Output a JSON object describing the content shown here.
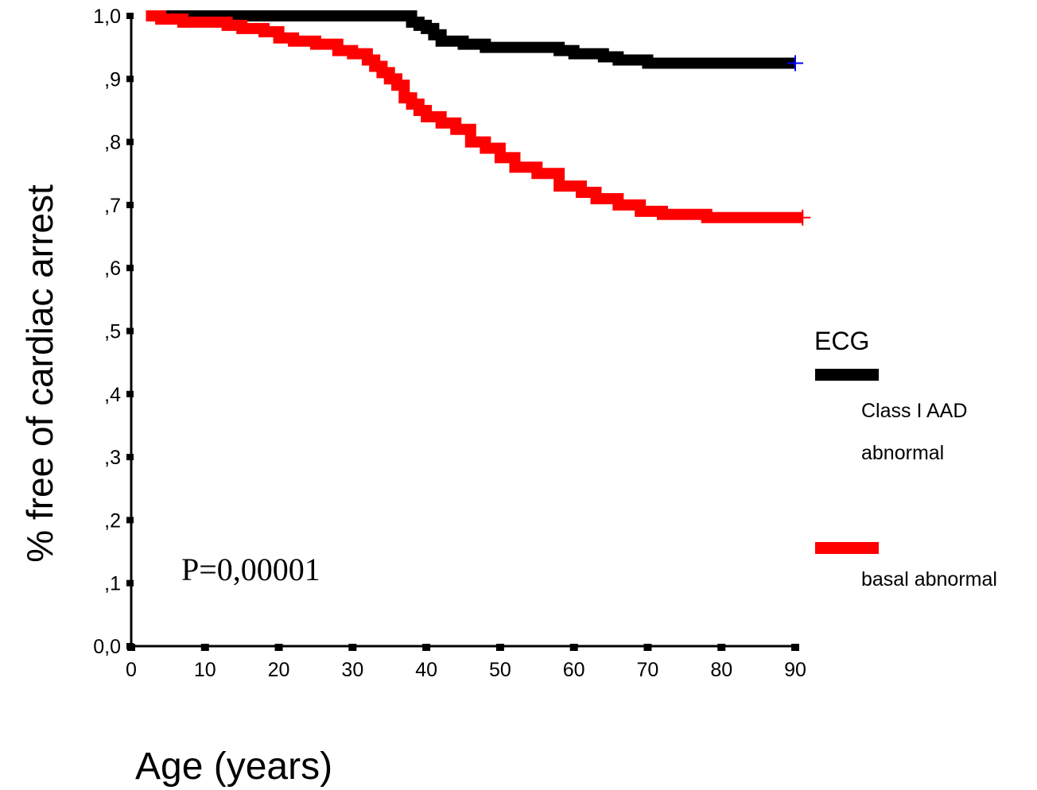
{
  "chart_data": {
    "type": "line",
    "ylabel": "% free of cardiac arrest",
    "xlabel": "Age (years)",
    "xlim": [
      0,
      90
    ],
    "ylim": [
      0,
      1
    ],
    "x_ticks": [
      "0",
      "10",
      "20",
      "30",
      "40",
      "50",
      "60",
      "70",
      "80",
      "90"
    ],
    "y_ticks": [
      "0,0",
      ",1",
      ",2",
      ",3",
      ",4",
      ",5",
      ",6",
      ",7",
      ",8",
      ",9",
      "1,0"
    ],
    "grid": false,
    "annotation": "P=0,00001",
    "legend": {
      "title": "ECG",
      "placement": "right",
      "entries": [
        {
          "lines": [
            "Class I AAD",
            "abnormal"
          ],
          "color": "#000000"
        },
        {
          "lines": [
            "basal abnormal"
          ],
          "color": "#ff0000"
        }
      ]
    },
    "series": [
      {
        "color": "#000000",
        "censor_color": "#0000ff",
        "censor_x": 90,
        "x": [
          2,
          16,
          38,
          39,
          40,
          41,
          42,
          45,
          48,
          58,
          60,
          64,
          66,
          70,
          90
        ],
        "y": [
          1.0,
          1.0,
          0.99,
          0.985,
          0.98,
          0.97,
          0.96,
          0.955,
          0.95,
          0.945,
          0.94,
          0.935,
          0.93,
          0.925,
          0.925
        ]
      },
      {
        "color": "#ff0000",
        "censor_color": "#ff0000",
        "censor_x": 91,
        "x": [
          2,
          4,
          7,
          13,
          15,
          18,
          20,
          22,
          25,
          28,
          30,
          32,
          33,
          34,
          35,
          36,
          37,
          38,
          39,
          40,
          42,
          44,
          46,
          48,
          50,
          52,
          55,
          58,
          61,
          63,
          66,
          69,
          72,
          78,
          91
        ],
        "y": [
          1.0,
          0.995,
          0.99,
          0.985,
          0.98,
          0.975,
          0.965,
          0.96,
          0.955,
          0.945,
          0.94,
          0.93,
          0.92,
          0.91,
          0.9,
          0.89,
          0.87,
          0.86,
          0.85,
          0.84,
          0.83,
          0.82,
          0.8,
          0.79,
          0.775,
          0.76,
          0.75,
          0.73,
          0.72,
          0.71,
          0.7,
          0.69,
          0.685,
          0.68,
          0.68
        ]
      }
    ]
  }
}
